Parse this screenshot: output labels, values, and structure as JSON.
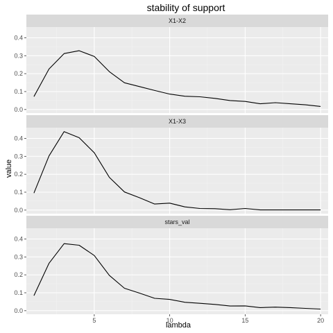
{
  "chart_data": {
    "type": "line",
    "title": "stability of support",
    "xlabel": "lambda",
    "ylabel": "value",
    "xlim": [
      0.5,
      20.5
    ],
    "ylim": [
      -0.02,
      0.46
    ],
    "xticks": [
      5,
      10,
      15,
      20
    ],
    "yticks": [
      0.0,
      0.1,
      0.2,
      0.3,
      0.4
    ],
    "ytick_labels": [
      "0.0",
      "0.1",
      "0.2",
      "0.3",
      "0.4"
    ],
    "grid": true,
    "facets": [
      "X1-X2",
      "X1-X3",
      "stars_val"
    ],
    "x": [
      1,
      2,
      3,
      4,
      5,
      6,
      7,
      8,
      9,
      10,
      11,
      12,
      13,
      14,
      15,
      16,
      17,
      18,
      19,
      20
    ],
    "series": [
      {
        "facet": "X1-X2",
        "values": [
          0.072,
          0.226,
          0.312,
          0.328,
          0.296,
          0.211,
          0.149,
          0.128,
          0.106,
          0.086,
          0.074,
          0.071,
          0.062,
          0.05,
          0.045,
          0.032,
          0.038,
          0.032,
          0.026,
          0.017
        ]
      },
      {
        "facet": "X1-X3",
        "values": [
          0.095,
          0.302,
          0.438,
          0.404,
          0.32,
          0.183,
          0.101,
          0.069,
          0.034,
          0.039,
          0.018,
          0.009,
          0.008,
          0.002,
          0.009,
          0.001,
          0.001,
          0.001,
          0.001,
          0.001
        ]
      },
      {
        "facet": "stars_val",
        "values": [
          0.084,
          0.264,
          0.374,
          0.365,
          0.308,
          0.197,
          0.125,
          0.098,
          0.069,
          0.063,
          0.047,
          0.041,
          0.035,
          0.026,
          0.027,
          0.017,
          0.02,
          0.017,
          0.013,
          0.009
        ]
      }
    ]
  },
  "colors": {
    "panel_bg": "#ebebeb",
    "strip_bg": "#d9d9d9",
    "grid_major": "#ffffff",
    "grid_minor": "#f2f2f2",
    "line": "#000000",
    "tick": "#333333"
  }
}
